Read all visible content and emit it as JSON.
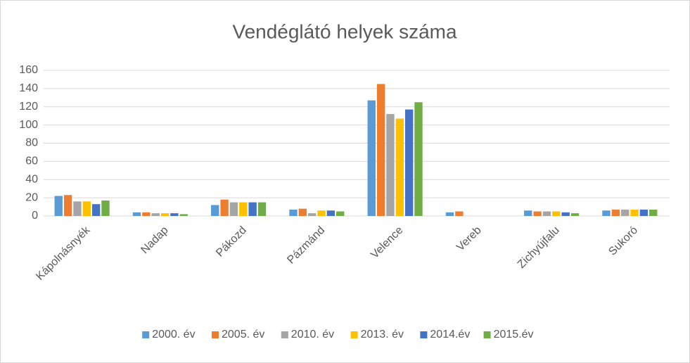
{
  "chart_data": {
    "type": "bar",
    "title": "Vendéglátó helyek száma",
    "categories": [
      "Kápolnásnyék",
      "Nadap",
      "Pákozd",
      "Pázmánd",
      "Velence",
      "Vereb",
      "Zichyújfalu",
      "Sukoró"
    ],
    "series": [
      {
        "name": "2000. év",
        "color": "#5b9bd5",
        "values": [
          22,
          4,
          12,
          7,
          127,
          4,
          6,
          6
        ]
      },
      {
        "name": "2005. év",
        "color": "#ed7d31",
        "values": [
          23,
          4,
          18,
          8,
          145,
          5,
          5,
          7
        ]
      },
      {
        "name": "2010. év",
        "color": "#a5a5a5",
        "values": [
          16,
          3,
          15,
          3,
          112,
          0,
          5,
          7
        ]
      },
      {
        "name": "2013. év",
        "color": "#ffc000",
        "values": [
          16,
          3,
          15,
          6,
          107,
          0,
          5,
          7
        ]
      },
      {
        "name": "2014.év",
        "color": "#4472c4",
        "values": [
          13,
          3,
          15,
          6,
          117,
          0,
          4,
          7
        ]
      },
      {
        "name": "2015.év",
        "color": "#70ad47",
        "values": [
          17,
          2,
          15,
          5,
          125,
          0,
          3,
          7
        ]
      }
    ],
    "ylim": [
      0,
      160
    ],
    "yticks": [
      0,
      20,
      40,
      60,
      80,
      100,
      120,
      140,
      160
    ],
    "grid": true,
    "legend": "bottom"
  }
}
